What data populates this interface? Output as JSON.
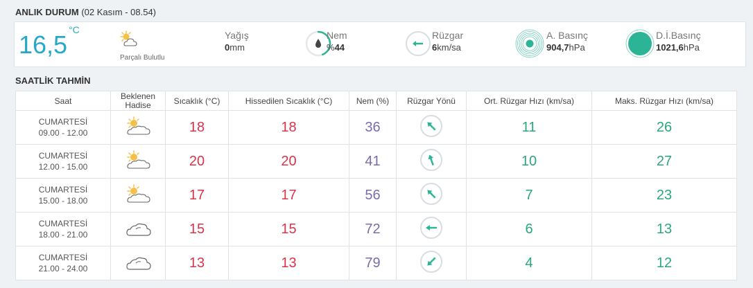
{
  "current": {
    "title": "ANLIK DURUM",
    "timestamp": "(02 Kasım - 08.54)",
    "temperature": "16,5",
    "temp_unit": "°C",
    "condition": "Parçalı Bulutlu",
    "precip_label": "Yağış",
    "precip_value": "0",
    "precip_unit": "mm",
    "humidity_label": "Nem",
    "humidity_prefix": "%",
    "humidity_value": "44",
    "humidity_fraction": 0.44,
    "wind_label": "Rüzgar",
    "wind_value": "6",
    "wind_unit": "km/sa",
    "pressure_label": "A. Basınç",
    "pressure_value": "904,7",
    "pressure_unit": "hPa",
    "sea_pressure_label": "D.İ.Basınç",
    "sea_pressure_value": "1021,6",
    "sea_pressure_unit": "hPa",
    "colors": {
      "accent": "#26a9c8",
      "teal": "#2bb596",
      "red": "#d9344b",
      "purple": "#7b6bab",
      "green": "#2ba77e"
    }
  },
  "hourly": {
    "title": "SAATLİK TAHMİN",
    "headers": {
      "time": "Saat",
      "expected_l1": "Beklenen",
      "expected_l2": "Hadise",
      "temp": "Sıcaklık (°C)",
      "feels": "Hissedilen Sıcaklık (°C)",
      "humidity": "Nem (%)",
      "wind_dir": "Rüzgar Yönü",
      "wind_avg": "Ort. Rüzgar Hızı (km/sa)",
      "wind_max": "Maks. Rüzgar Hızı (km/sa)"
    },
    "rows": [
      {
        "day": "CUMARTESİ",
        "range": "09.00 - 12.00",
        "icon": "partly-cloudy-icon",
        "temp": "18",
        "feels": "18",
        "humidity": "36",
        "wind_dir_deg": 315,
        "wind_avg": "11",
        "wind_max": "26"
      },
      {
        "day": "CUMARTESİ",
        "range": "12.00 - 15.00",
        "icon": "partly-cloudy-icon",
        "temp": "20",
        "feels": "20",
        "humidity": "41",
        "wind_dir_deg": 340,
        "wind_avg": "10",
        "wind_max": "27"
      },
      {
        "day": "CUMARTESİ",
        "range": "15.00 - 18.00",
        "icon": "partly-cloudy-icon",
        "temp": "17",
        "feels": "17",
        "humidity": "56",
        "wind_dir_deg": 315,
        "wind_avg": "7",
        "wind_max": "23"
      },
      {
        "day": "CUMARTESİ",
        "range": "18.00 - 21.00",
        "icon": "cloudy-icon",
        "temp": "15",
        "feels": "15",
        "humidity": "72",
        "wind_dir_deg": 270,
        "wind_avg": "6",
        "wind_max": "13"
      },
      {
        "day": "CUMARTESİ",
        "range": "21.00 - 24.00",
        "icon": "cloudy-icon",
        "temp": "13",
        "feels": "13",
        "humidity": "79",
        "wind_dir_deg": 225,
        "wind_avg": "4",
        "wind_max": "12"
      }
    ]
  }
}
